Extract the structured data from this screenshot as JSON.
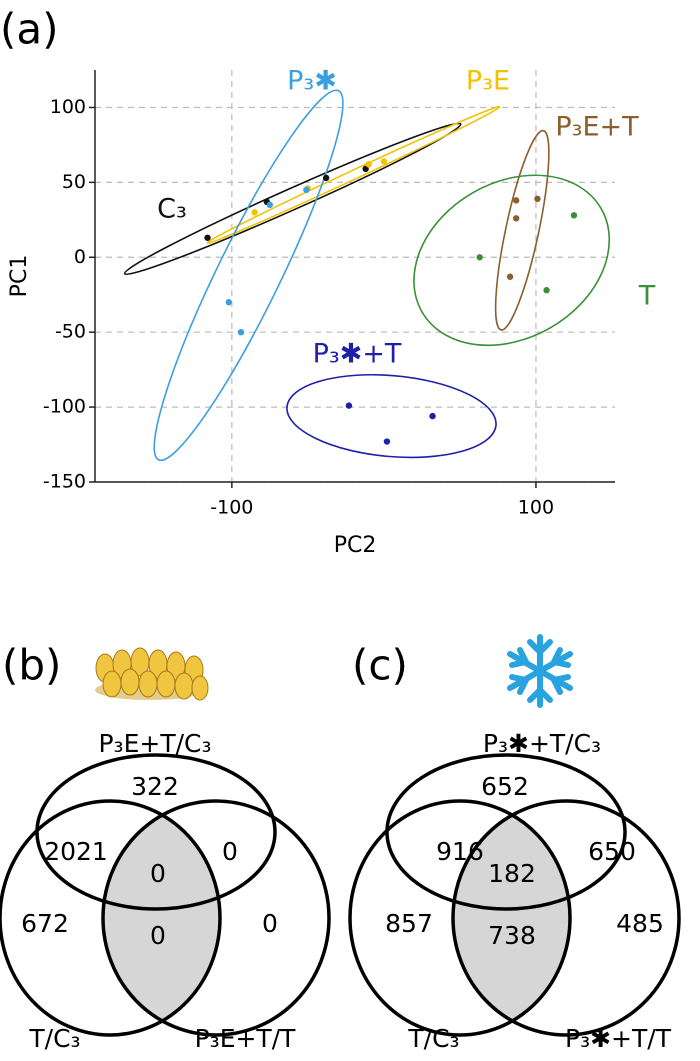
{
  "chart_data": [
    {
      "type": "scatter",
      "panel": "(a)",
      "x_label": "PC2",
      "y_label": "PC1",
      "xlim": [
        -190,
        152
      ],
      "ylim": [
        -150,
        125
      ],
      "xticks": [
        -100,
        100
      ],
      "yticks": [
        -150,
        -100,
        -50,
        0,
        50,
        100
      ],
      "grid": true,
      "series": [
        {
          "name": "C₃",
          "color": "#111111",
          "x": [
            -116,
            -77,
            -38,
            -12
          ],
          "values": [
            13,
            37,
            53,
            59
          ],
          "ellipse": {
            "cx": -60,
            "cy": 39,
            "rx": 121,
            "ry": 7,
            "angle": 24
          }
        },
        {
          "name": "P₃E",
          "color": "#f2c200",
          "x": [
            -85,
            -50,
            -10,
            0
          ],
          "values": [
            30,
            46,
            62,
            64
          ],
          "ellipse": {
            "cx": -20,
            "cy": 55,
            "rx": 106,
            "ry": 3,
            "angle": 25
          }
        },
        {
          "name": "P₃✱",
          "color": "#3a9fe0",
          "x": [
            -102,
            -94,
            -51,
            -75
          ],
          "values": [
            -30,
            -50,
            45,
            35
          ],
          "ellipse": {
            "cx": -89,
            "cy": -12,
            "rx": 135,
            "ry": 21,
            "angle": 64
          }
        },
        {
          "name": "P₃E+T",
          "color": "#8b5e2e",
          "x": [
            87,
            101,
            87,
            83
          ],
          "values": [
            38,
            39,
            26,
            -13
          ],
          "ellipse": {
            "cx": 91,
            "cy": 18,
            "rx": 67,
            "ry": 11,
            "angle": 78
          }
        },
        {
          "name": "T",
          "color": "#3a8f3a",
          "x": [
            63,
            125,
            107
          ],
          "values": [
            0,
            28,
            -22
          ],
          "ellipse": {
            "cx": 84,
            "cy": -2,
            "rx": 68,
            "ry": 52,
            "angle": 30
          }
        },
        {
          "name": "P₃✱+T",
          "color": "#1f1fa8",
          "x": [
            -23,
            2,
            32
          ],
          "values": [
            -99,
            -123,
            -106
          ],
          "ellipse": {
            "cx": 5,
            "cy": -106,
            "rx": 69,
            "ry": 27,
            "angle": -5
          }
        }
      ]
    },
    {
      "type": "venn",
      "panel": "(b)",
      "sets": [
        "P₃E+T/C₃",
        "T/C₃",
        "P₃E+T/T"
      ],
      "values": [
        322,
        2021,
        0,
        0,
        672,
        0,
        0
      ]
    },
    {
      "type": "venn",
      "panel": "(c)",
      "sets": [
        "P₃✱+T/C₃",
        "T/C₃",
        "P₃✱+T/T"
      ],
      "values": [
        652,
        916,
        650,
        182,
        857,
        738,
        485
      ]
    }
  ]
}
